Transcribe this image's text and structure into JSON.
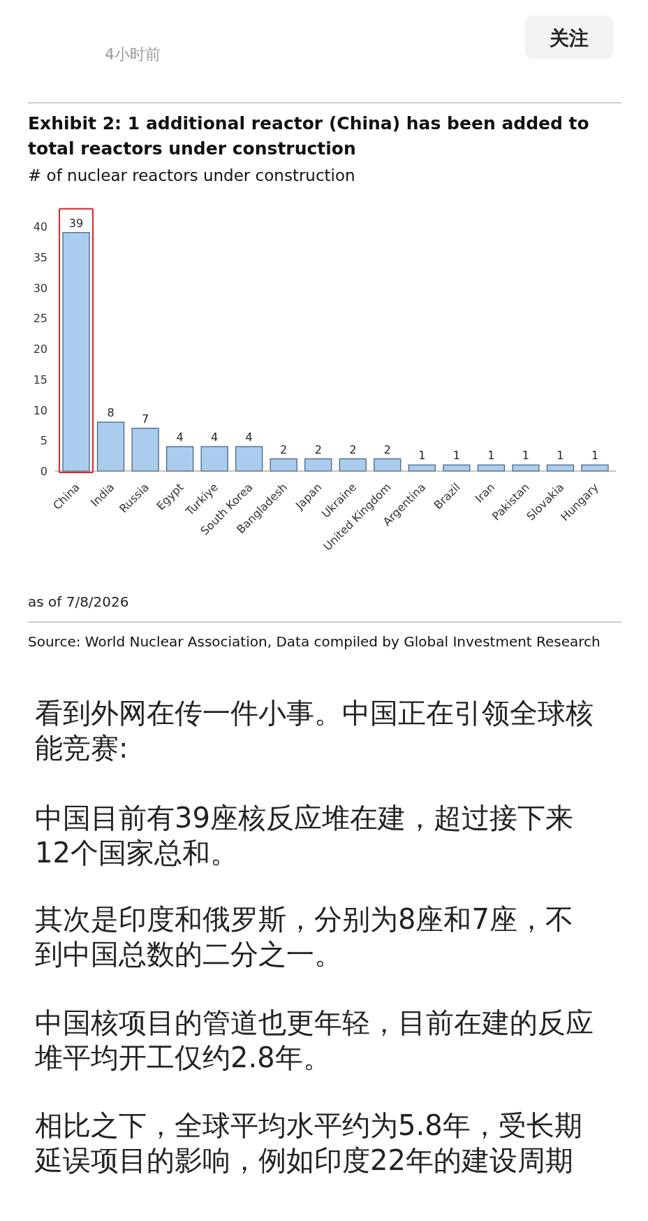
{
  "chart_data": {
    "type": "bar",
    "title": "Exhibit 2: 1 additional reactor (China) has been added to total reactors under construction",
    "subtitle": "# of nuclear reactors under construction",
    "categories": [
      "China",
      "India",
      "Russia",
      "Egypt",
      "Turkiye",
      "South Korea",
      "Bangladesh",
      "Japan",
      "Ukraine",
      "United Kingdom",
      "Argentina",
      "Brazil",
      "Iran",
      "Pakistan",
      "Slovakia",
      "Hungary"
    ],
    "values": [
      39,
      8,
      7,
      4,
      4,
      4,
      2,
      2,
      2,
      2,
      1,
      1,
      1,
      1,
      1,
      1
    ],
    "color": "#aacdee",
    "ylim": [
      0,
      40
    ],
    "yticks": [
      0,
      5,
      10,
      15,
      20,
      25,
      30,
      35,
      40
    ],
    "data_labels": true,
    "grid": false,
    "annotations": [
      "4小时前",
      "关注",
      "as of 7/8/2026",
      "Source: World Nuclear Association, Data compiled by Global Investment Research",
      "看到外网在传一件小事。中国正在引领全球核能竞赛:",
      "中国目前有39座核反应堆在建，超过接下来12个国家总和。",
      "其次是印度和俄罗斯，分别为8座和7座，不到中国总数的二分之一。",
      "中国核项目的管道也更年轻，目前在建的反应堆平均开工仅约2.8年。",
      "相比之下，全球平均水平约为5.8年，受长期延误项目的影响，例如印度22年的建设周期"
    ]
  }
}
